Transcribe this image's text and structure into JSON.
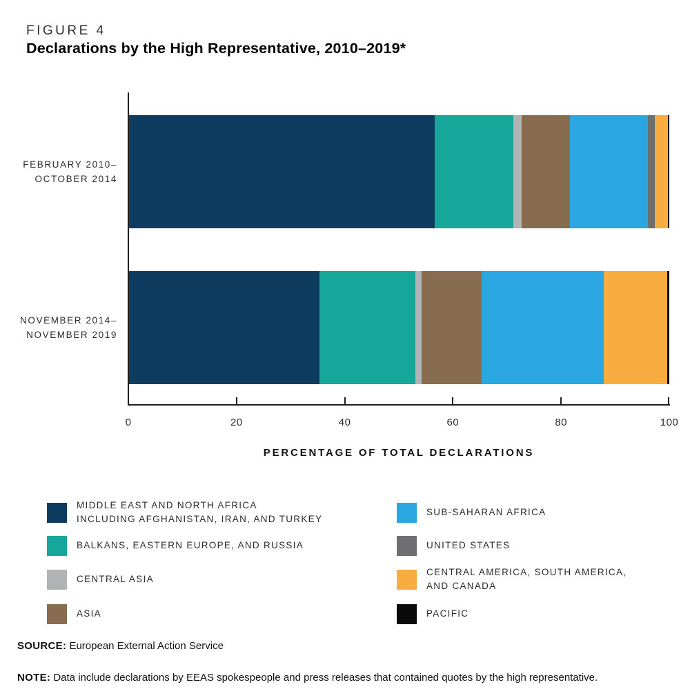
{
  "header": {
    "figure_label": "FIGURE 4",
    "title": "Declarations by the High Representative, 2010–2019*"
  },
  "chart_data": {
    "type": "bar",
    "orientation": "horizontal",
    "stacked": true,
    "title": "Declarations by the High Representative, 2010–2019*",
    "xlabel": "PERCENTAGE OF TOTAL DECLARATIONS",
    "ylabel": "",
    "xlim": [
      0,
      100
    ],
    "x_ticks": [
      0,
      20,
      40,
      60,
      80,
      100
    ],
    "grid": false,
    "legend_position": "bottom",
    "series": [
      {
        "name": "Middle East and North Africa including Afghanistan, Iran, and Turkey",
        "color": "#0e3c60"
      },
      {
        "name": "Balkans, Eastern Europe, and Russia",
        "color": "#16a79a"
      },
      {
        "name": "Central Asia",
        "color": "#b1b3b5"
      },
      {
        "name": "Asia",
        "color": "#886c4f"
      },
      {
        "name": "Sub-Saharan Africa",
        "color": "#2aa7e0"
      },
      {
        "name": "United States",
        "color": "#6f6f71"
      },
      {
        "name": "Central America, South America, and Canada",
        "color": "#f9ad40"
      },
      {
        "name": "Pacific",
        "color": "#0a0a0a"
      }
    ],
    "categories": [
      {
        "label_lines": [
          "FEBRUARY 2010–",
          "OCTOBER 2014"
        ],
        "values": [
          56.6,
          14.6,
          1.5,
          8.9,
          14.4,
          1.3,
          2.4,
          0.3
        ]
      },
      {
        "label_lines": [
          "NOVEMBER 2014–",
          "NOVEMBER 2019"
        ],
        "values": [
          35.3,
          17.7,
          1.2,
          11.1,
          22.6,
          0,
          11.7,
          0.4
        ]
      }
    ]
  },
  "legend": {
    "columns": [
      [
        {
          "series_index": 0,
          "lines": [
            "MIDDLE EAST AND NORTH AFRICA",
            "INCLUDING AFGHANISTAN, IRAN, AND TURKEY"
          ]
        },
        {
          "series_index": 1,
          "lines": [
            "BALKANS, EASTERN EUROPE, AND RUSSIA"
          ]
        },
        {
          "series_index": 2,
          "lines": [
            "CENTRAL ASIA"
          ]
        },
        {
          "series_index": 3,
          "lines": [
            "ASIA"
          ]
        }
      ],
      [
        {
          "series_index": 4,
          "lines": [
            "SUB-SAHARAN AFRICA"
          ]
        },
        {
          "series_index": 5,
          "lines": [
            "UNITED STATES"
          ]
        },
        {
          "series_index": 6,
          "lines": [
            "CENTRAL AMERICA, SOUTH AMERICA,",
            "AND CANADA"
          ]
        },
        {
          "series_index": 7,
          "lines": [
            "PACIFIC"
          ]
        }
      ]
    ]
  },
  "footer": {
    "source_label": "SOURCE:",
    "source_text": "European External Action Service",
    "note_label": "NOTE:",
    "note_text": "Data include declarations by EEAS spokespeople and press releases that contained quotes by the high representative."
  }
}
